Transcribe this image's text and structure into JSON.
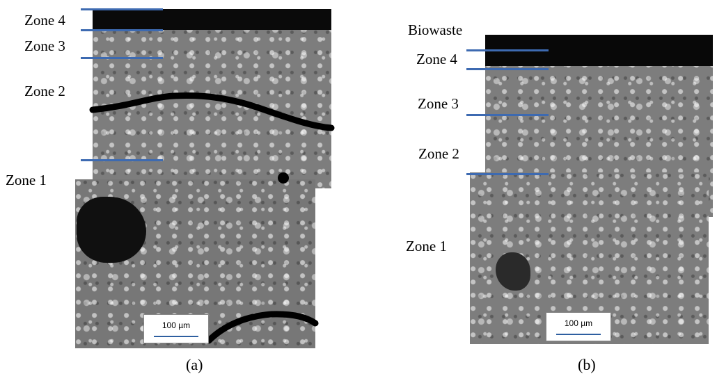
{
  "panel_a": {
    "zones": [
      "Zone 4",
      "Zone 3",
      "Zone 2",
      "Zone 1"
    ],
    "scale_bar": "100 µm",
    "caption": "(a)"
  },
  "panel_b": {
    "surface_label": "Biowaste",
    "zones": [
      "Zone 4",
      "Zone 3",
      "Zone 2",
      "Zone 1"
    ],
    "scale_bar": "100 µm",
    "caption": "(b)"
  },
  "colors": {
    "zone_line": "#3d6ab1",
    "sem_gray": "#7d7d7d",
    "crack": "#000000"
  }
}
